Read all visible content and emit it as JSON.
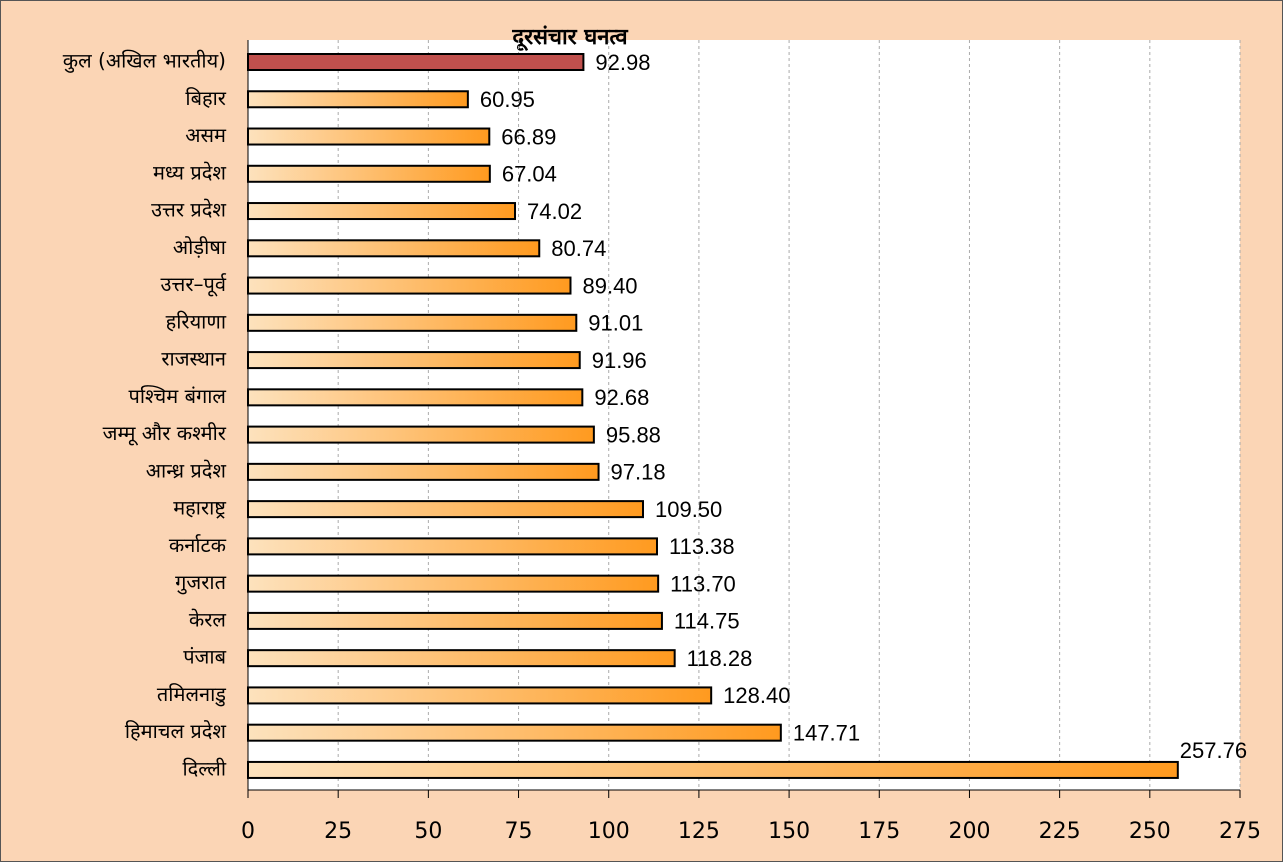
{
  "chart_data": {
    "type": "barh",
    "title": "दूरसंचार घनत्व",
    "categories": [
      "कुल (अखिल भारतीय)",
      "बिहार",
      "असम",
      "मध्य प्रदेश",
      "उत्तर प्रदेश",
      "ओड़ीषा",
      "उत्तर–पूर्व",
      "हरियाणा",
      "राजस्थान",
      "पश्चिम बंगाल",
      "जम्मू और कश्मीर",
      "आन्ध्र प्रदेश",
      "महाराष्ट्र",
      "कर्नाटक",
      "गुजरात",
      "केरल",
      "पंजाब",
      "तमिलनाडु",
      "हिमाचल प्रदेश",
      "दिल्ली"
    ],
    "values": [
      92.98,
      60.95,
      66.89,
      67.04,
      74.02,
      80.74,
      89.4,
      91.01,
      91.96,
      92.68,
      95.88,
      97.18,
      109.5,
      113.38,
      113.7,
      114.75,
      118.28,
      128.4,
      147.71,
      257.76
    ],
    "value_labels": [
      "92.98",
      "60.95",
      "66.89",
      "67.04",
      "74.02",
      "80.74",
      "89.40",
      "91.01",
      "91.96",
      "92.68",
      "95.88",
      "97.18",
      "109.50",
      "113.38",
      "113.70",
      "114.75",
      "118.28",
      "128.40",
      "147.71",
      "257.76"
    ],
    "gradient": [
      "#fde2bd",
      "#ff9a1f"
    ],
    "highlight": {
      "index": 0,
      "color": "#c0504d"
    },
    "xlim": [
      0,
      275
    ],
    "xticks": [
      0,
      25,
      50,
      75,
      100,
      125,
      150,
      175,
      200,
      225,
      250,
      275
    ],
    "grid": true
  }
}
